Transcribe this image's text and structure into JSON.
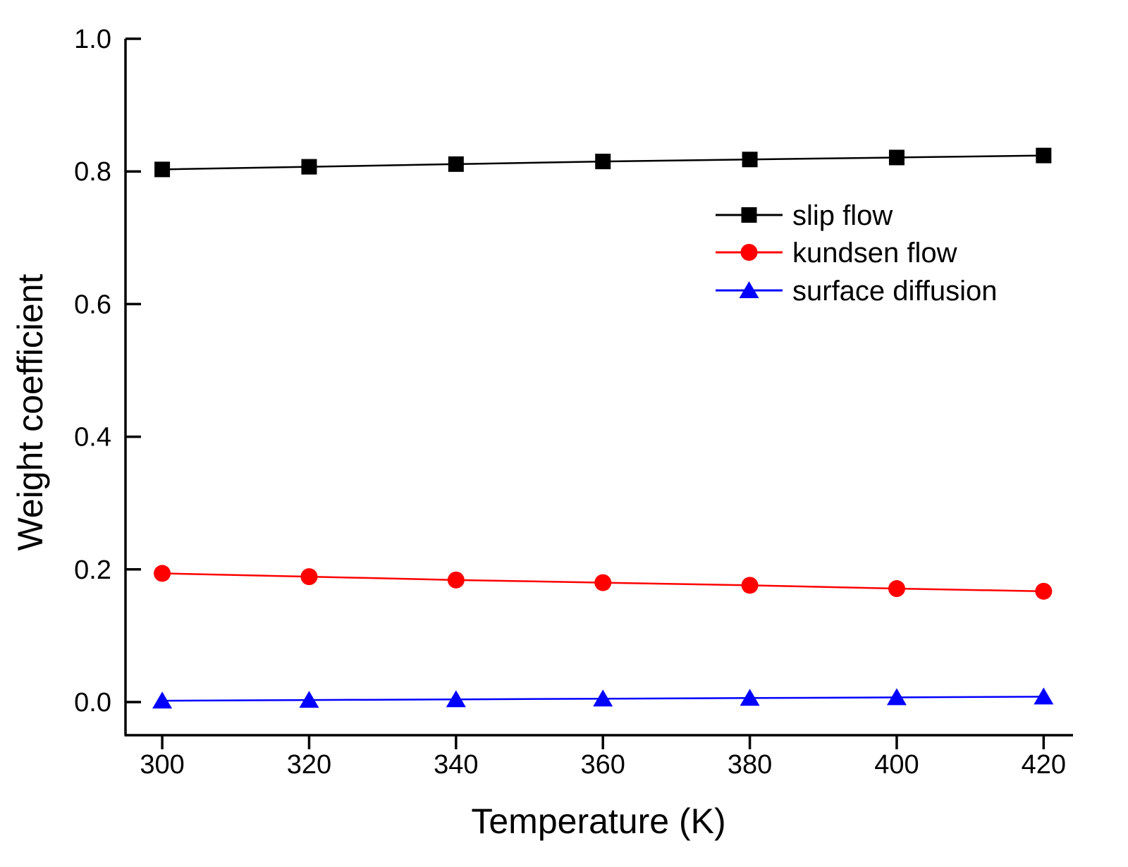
{
  "chart_data": {
    "type": "line",
    "title": "",
    "xlabel": "Temperature (K)",
    "ylabel": "Weight coefficient",
    "x": [
      300,
      320,
      340,
      360,
      380,
      400,
      420
    ],
    "xlim": [
      295,
      424
    ],
    "ylim": [
      -0.05,
      1.0
    ],
    "xticks": [
      300,
      320,
      340,
      360,
      380,
      400,
      420
    ],
    "xtick_labels": [
      "300",
      "320",
      "340",
      "360",
      "380",
      "400",
      "420"
    ],
    "yticks": [
      0.0,
      0.2,
      0.4,
      0.6,
      0.8,
      1.0
    ],
    "ytick_labels": [
      "0.0",
      "0.2",
      "0.4",
      "0.6",
      "0.8",
      "1.0"
    ],
    "grid": false,
    "legend_position": "upper-right",
    "series": [
      {
        "name": "slip flow",
        "marker": "square",
        "color": "#000000",
        "values": [
          0.803,
          0.807,
          0.811,
          0.815,
          0.818,
          0.821,
          0.824
        ]
      },
      {
        "name": "kundsen flow",
        "marker": "circle",
        "color": "#ff0000",
        "values": [
          0.194,
          0.189,
          0.184,
          0.18,
          0.176,
          0.171,
          0.167
        ]
      },
      {
        "name": "surface diffusion",
        "marker": "triangle",
        "color": "#0000ff",
        "values": [
          0.002,
          0.003,
          0.004,
          0.005,
          0.006,
          0.007,
          0.008
        ]
      }
    ]
  }
}
